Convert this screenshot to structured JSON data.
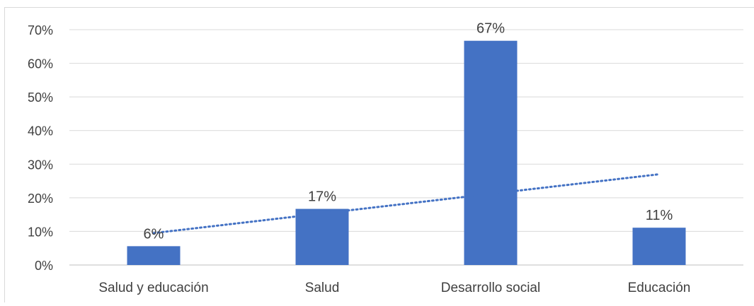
{
  "chart_data": {
    "type": "bar",
    "categories": [
      "Salud y educación",
      "Salud",
      "Desarrollo social",
      "Educación"
    ],
    "values": [
      0.056,
      0.167,
      0.667,
      0.111
    ],
    "data_labels": [
      "6%",
      "17%",
      "67%",
      "11%"
    ],
    "y_ticks": [
      "0%",
      "10%",
      "20%",
      "30%",
      "40%",
      "50%",
      "60%",
      "70%"
    ],
    "ylim": [
      0,
      0.7
    ],
    "grid": true,
    "trendline": {
      "type": "linear",
      "style": "dotted",
      "start": 0.095,
      "end": 0.27
    },
    "colors": {
      "bar": "#4472c4",
      "trendline": "#4472c4",
      "grid": "#d9d9d9",
      "text": "#404040"
    }
  }
}
